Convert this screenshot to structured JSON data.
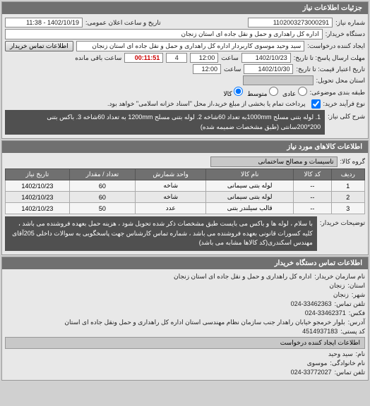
{
  "panel1": {
    "title": "جزئیات اطلاعات نیاز",
    "req_number_label": "شماره نیاز:",
    "req_number": "1102003273000291",
    "public_date_label": "تاریخ و ساعت اعلان عمومی:",
    "public_date": "1402/10/19 - 11:38",
    "buyer_label": "دستگاه خریدار:",
    "buyer": "اداره کل راهداری و حمل و نقل جاده ای استان زنجان",
    "requester_label": "ایجاد کننده درخواست:",
    "requester": "سید وحید موسوی کاربردار اداره کل راهداری و حمل و نقل جاده ای استان زنجان",
    "contact_btn": "اطلاعات تماس خریدار",
    "reply_deadline_label": "مهلت ارسال پاسخ: تا تاریخ:",
    "reply_date": "1402/10/23",
    "time_label": "ساعت",
    "reply_time": "12:00",
    "remaining_label": "ساعت باقی مانده",
    "remaining_days": "4",
    "remaining_time": "00:11:51",
    "validity_label": "تاریخ اعتبار قیمت:    تا تاریخ:",
    "validity_date": "1402/10/30",
    "validity_time": "12:00",
    "delivery_label": "استان محل تحویل:",
    "delivery_value": "",
    "priority_label": "طبقه بندی موضوعی:",
    "priority_opts": [
      "عادی",
      "متوسط",
      "کالا"
    ],
    "priority_selected": 2,
    "pay_label": "نوع فرآیند خرید:",
    "pay_text": "پرداخت تمام یا بخشی از مبلغ خرید،از محل \"اسناد خزانه اسلامی\" خواهد بود.",
    "desc_label": "شرح کلی نیاز:",
    "desc_text": "1. لوله بتنی مسلح 1000mmبه تعداد 60شاخه 2. لوله بتنی مسلح 1200mm به تعداد 60شاخه 3. باکس بتنی 200*200سانتی (طبق مشخصات ضمیمه شده)"
  },
  "goods": {
    "title": "اطلاعات کالاهای مورد نیاز",
    "group_label": "گروه کالا:",
    "group_value": "تاسیسات و مصالح ساختمانی",
    "columns": [
      "ردیف",
      "کد کالا",
      "نام کالا",
      "واحد شمارش",
      "تعداد / مقدار",
      "تاریخ نیاز"
    ],
    "rows": [
      [
        "1",
        "--",
        "لوله بتنی سیمانی",
        "شاخه",
        "60",
        "1402/10/23"
      ],
      [
        "2",
        "--",
        "لوله بتنی سیمانی",
        "شاخه",
        "60",
        "1402/10/23"
      ],
      [
        "3",
        "--",
        "قالب سیلندر بتنی",
        "عدد",
        "50",
        "1402/10/23"
      ]
    ],
    "notes_label": "توضیحات خریدار:",
    "notes_text": "با سلام ، لوله ها و باکس می بایست طبق مشخصات ذکر شده تحویل شود ، هزینه حمل بعهده فروشنده می باشد ، کلیه کسورات قانونی بعهده فروشنده می باشد ، شماره تماس کارشناس جهت پاسخگویی به سوالات داخلی 205آقای مهندس اسکندری(کد کالاها مشابه می باشد)"
  },
  "contact": {
    "title": "اطلاعات تماس دستگاه خریدار",
    "org_label": "نام سازمان خریدار:",
    "org": "اداره کل راهداری و حمل و نقل جاده ای استان زنجان",
    "province_label": "استان:",
    "province": "زنجان",
    "city_label": "شهر:",
    "city": "زنجان",
    "tel_label": "تلفن تماس:",
    "tel": "024-33462363",
    "fax_label": "فکس:",
    "fax": "024-33462371",
    "address_label": "آدرس:",
    "address": "بلوار خرمجو خیابان راهدار جنب سازمان نظام مهندسی استان اداره کل راهداری و حمل ونقل جاده ای استان",
    "postal_label": "کد پستی:",
    "postal": "4514937183",
    "creator_title": "اطلاعات ایجاد کننده درخواست",
    "name_label": "نام:",
    "name": "سید وحید",
    "family_label": "نام خانوادگی:",
    "family": "موسوی",
    "phone_label": "تلفن تماس:",
    "phone": "024-33772027"
  },
  "colors": {
    "header_bg": "#707070",
    "panel_bg": "#e8e8e8",
    "dark_bg": "#505050"
  }
}
